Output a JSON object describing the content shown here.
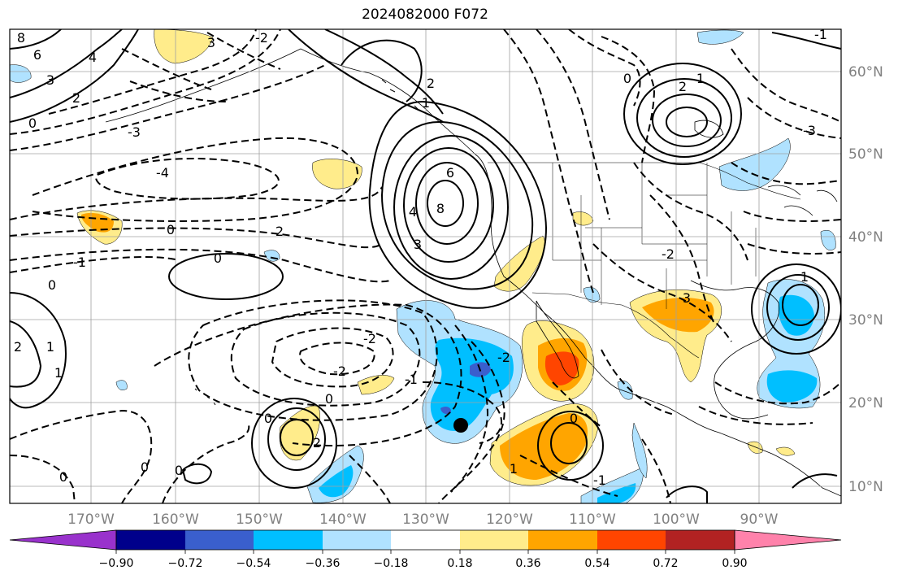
{
  "title": "2024082000 F072",
  "map": {
    "lon_labels": [
      "170°W",
      "160°W",
      "150°W",
      "140°W",
      "130°W",
      "120°W",
      "110°W",
      "100°W",
      "90°W"
    ],
    "lat_labels": [
      "60°N",
      "50°N",
      "40°N",
      "30°N",
      "20°N",
      "10°N"
    ]
  },
  "colorbar": {
    "ticks": [
      "−0.90",
      "−0.72",
      "−0.54",
      "−0.36",
      "−0.18",
      "0.18",
      "0.36",
      "0.54",
      "0.72",
      "0.90"
    ],
    "colors": [
      "#9932cc",
      "#00008b",
      "#3a5fcd",
      "#00bfff",
      "#b0e2ff",
      "#ffffff",
      "#ffec8b",
      "#ffa500",
      "#ff4500",
      "#b22222",
      "#ff82ab"
    ]
  },
  "contour_labels": [
    "8",
    "6",
    "4",
    "3",
    "2",
    "1",
    "0",
    "0",
    "0",
    "0",
    "0",
    "0",
    "0",
    "0",
    "0",
    "0",
    "-4",
    "-2",
    "-2",
    "-2",
    "-1",
    "-1",
    "-3",
    "3",
    "2",
    "2",
    "1",
    "1",
    "2",
    "3",
    "6",
    "4",
    "8",
    "-2",
    "1",
    "0",
    "-1",
    "-2",
    "3",
    "2",
    "1",
    "-1",
    "1",
    "2",
    "-3"
  ],
  "colors": {
    "axis": "#000000",
    "grid": "#a0a0a0",
    "label": "#808080",
    "marker": "#000000"
  }
}
